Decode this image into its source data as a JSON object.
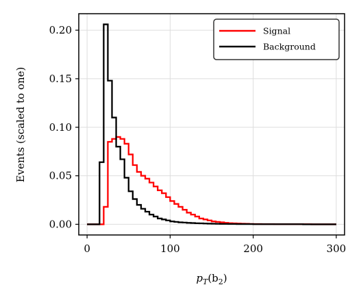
{
  "chart_data": {
    "type": "line",
    "drawstyle": "steps",
    "title": "",
    "xlabel_prefix": "p",
    "xlabel_sub1": "T",
    "xlabel_mid": "(b",
    "xlabel_sub2": "2",
    "xlabel_suffix": ")",
    "ylabel": "Events (scaled to one)",
    "xlim": [
      -10,
      310
    ],
    "ylim": [
      -0.011,
      0.217
    ],
    "xticks": [
      0,
      100,
      200,
      300
    ],
    "xtick_labels": [
      "0",
      "100",
      "200",
      "300"
    ],
    "yticks": [
      0.0,
      0.05,
      0.1,
      0.15,
      0.2
    ],
    "ytick_labels": [
      "0.00",
      "0.05",
      "0.10",
      "0.15",
      "0.20"
    ],
    "grid": true,
    "legend_position": "top-right",
    "bin_edges": [
      0,
      5,
      10,
      15,
      20,
      25,
      30,
      35,
      40,
      45,
      50,
      55,
      60,
      65,
      70,
      75,
      80,
      85,
      90,
      95,
      100,
      105,
      110,
      115,
      120,
      125,
      130,
      135,
      140,
      145,
      150,
      155,
      160,
      165,
      170,
      175,
      180,
      185,
      190,
      195,
      200,
      205,
      210,
      215,
      220,
      225,
      230,
      235,
      240,
      245,
      250,
      255,
      260,
      265,
      270,
      275,
      280,
      285,
      290,
      295,
      300
    ],
    "series": [
      {
        "name": "Signal",
        "color": "#ff0000",
        "values": [
          0,
          0,
          0,
          0,
          0.018,
          0.085,
          0.088,
          0.09,
          0.088,
          0.083,
          0.072,
          0.061,
          0.054,
          0.05,
          0.047,
          0.043,
          0.039,
          0.035,
          0.032,
          0.028,
          0.024,
          0.021,
          0.018,
          0.015,
          0.012,
          0.01,
          0.008,
          0.006,
          0.005,
          0.004,
          0.003,
          0.0025,
          0.002,
          0.0015,
          0.0012,
          0.001,
          0.0008,
          0.0006,
          0.0005,
          0.0004,
          0.0003,
          0.0003,
          0.0002,
          0.0002,
          0.0002,
          0.0001,
          0.0001,
          0.0001,
          0.0001,
          0.0001,
          0.0001,
          0.0001,
          0.0001,
          0.0001,
          0,
          0,
          0,
          0,
          0,
          0
        ]
      },
      {
        "name": "Background",
        "color": "#000000",
        "values": [
          0,
          0,
          0,
          0.064,
          0.206,
          0.148,
          0.11,
          0.08,
          0.067,
          0.048,
          0.034,
          0.026,
          0.02,
          0.016,
          0.013,
          0.01,
          0.008,
          0.006,
          0.005,
          0.004,
          0.003,
          0.0025,
          0.002,
          0.0018,
          0.0015,
          0.0013,
          0.0011,
          0.001,
          0.0008,
          0.0007,
          0.0006,
          0.0005,
          0.0004,
          0.0004,
          0.0003,
          0.0003,
          0.0002,
          0.0002,
          0.0002,
          0.0002,
          0.0001,
          0.0001,
          0.0001,
          0.0001,
          0.0001,
          0.0001,
          0.0001,
          0.0001,
          0.0001,
          0.0001,
          0.0001,
          0.0001,
          0,
          0,
          0,
          0,
          0,
          0,
          0,
          0
        ]
      }
    ]
  }
}
